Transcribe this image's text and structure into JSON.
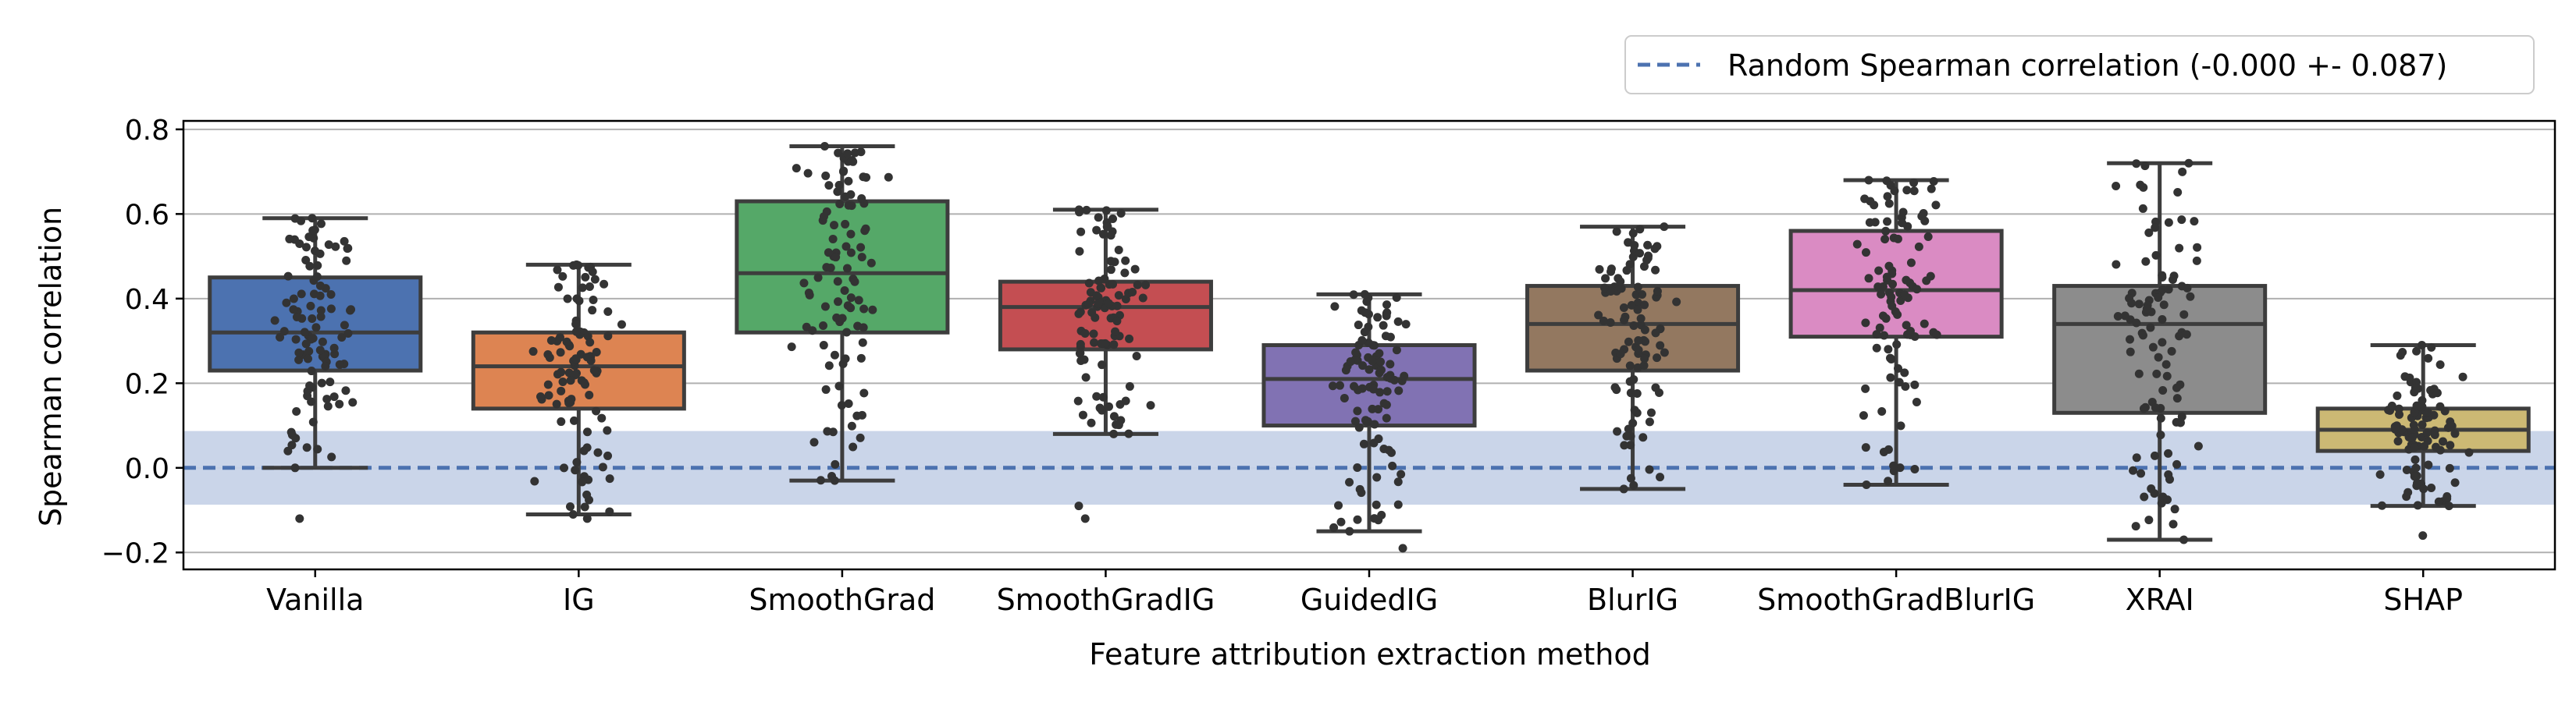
{
  "chart_data": {
    "type": "box",
    "xlabel": "Feature attribution extraction method",
    "ylabel": "Spearman correlation",
    "ylim": [
      -0.24,
      0.82
    ],
    "yticks": [
      -0.2,
      0.0,
      0.2,
      0.4,
      0.6,
      0.8
    ],
    "ytick_labels": [
      "−0.2",
      "0.0",
      "0.2",
      "0.4",
      "0.6",
      "0.8"
    ],
    "grid": "horizontal",
    "legend_position": "top-right",
    "random_baseline": {
      "label": "Random Spearman correlation (-0.000 +- 0.087)",
      "mean": 0.0,
      "std": 0.087,
      "color": "#4c72b0",
      "band_color": "#c7d3e8"
    },
    "categories": [
      "Vanilla",
      "IG",
      "SmoothGrad",
      "SmoothGradIG",
      "GuidedIG",
      "BlurIG",
      "SmoothGradBlurIG",
      "XRAI",
      "SHAP"
    ],
    "boxes": [
      {
        "name": "Vanilla",
        "color": "#4c72b0",
        "whisker_low": 0.0,
        "q1": 0.23,
        "median": 0.32,
        "q3": 0.45,
        "whisker_high": 0.59,
        "outliers": [
          -0.12
        ]
      },
      {
        "name": "IG",
        "color": "#dd8452",
        "whisker_low": -0.11,
        "q1": 0.14,
        "median": 0.24,
        "q3": 0.32,
        "whisker_high": 0.48,
        "outliers": [
          -0.12
        ]
      },
      {
        "name": "SmoothGrad",
        "color": "#55a868",
        "whisker_low": -0.03,
        "q1": 0.32,
        "median": 0.46,
        "q3": 0.63,
        "whisker_high": 0.76,
        "outliers": []
      },
      {
        "name": "SmoothGradIG",
        "color": "#c44e52",
        "whisker_low": 0.08,
        "q1": 0.28,
        "median": 0.38,
        "q3": 0.44,
        "whisker_high": 0.61,
        "outliers": [
          -0.09,
          -0.12
        ]
      },
      {
        "name": "GuidedIG",
        "color": "#8172b3",
        "whisker_low": -0.15,
        "q1": 0.1,
        "median": 0.21,
        "q3": 0.29,
        "whisker_high": 0.41,
        "outliers": [
          -0.19
        ]
      },
      {
        "name": "BlurIG",
        "color": "#937860",
        "whisker_low": -0.05,
        "q1": 0.23,
        "median": 0.34,
        "q3": 0.43,
        "whisker_high": 0.57,
        "outliers": []
      },
      {
        "name": "SmoothGradBlurIG",
        "color": "#da8bc3",
        "whisker_low": -0.04,
        "q1": 0.31,
        "median": 0.42,
        "q3": 0.56,
        "whisker_high": 0.68,
        "outliers": []
      },
      {
        "name": "XRAI",
        "color": "#8c8c8c",
        "whisker_low": -0.17,
        "q1": 0.13,
        "median": 0.34,
        "q3": 0.43,
        "whisker_high": 0.72,
        "outliers": []
      },
      {
        "name": "SHAP",
        "color": "#ccb974",
        "whisker_low": -0.09,
        "q1": 0.04,
        "median": 0.09,
        "q3": 0.14,
        "whisker_high": 0.29,
        "outliers": [
          -0.16
        ]
      }
    ]
  }
}
